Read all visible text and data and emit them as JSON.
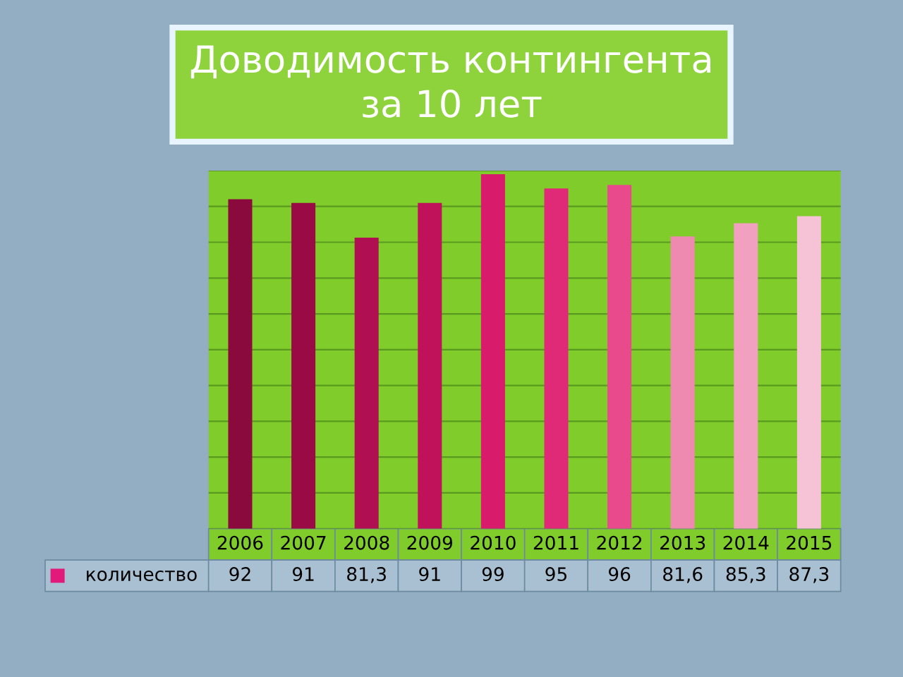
{
  "chart_data": {
    "type": "bar",
    "title": "Доводимость контингента\nза 10 лет",
    "categories": [
      "2006",
      "2007",
      "2008",
      "2009",
      "2010",
      "2011",
      "2012",
      "2013",
      "2014",
      "2015"
    ],
    "series": [
      {
        "name": "количество",
        "color": "#e0197a",
        "colors": [
          "#8b0a3e",
          "#9a0b45",
          "#b00f52",
          "#c0125a",
          "#d81b6a",
          "#e02a78",
          "#e84a8c",
          "#ee8ab0",
          "#f2a0c0",
          "#f6c2d6"
        ],
        "values": [
          92,
          91,
          81.3,
          91,
          99,
          95,
          96,
          81.6,
          85.3,
          87.3
        ],
        "value_labels": [
          "92",
          "91",
          "81,3",
          "91",
          "99",
          "95",
          "96",
          "81,6",
          "85,3",
          "87,3"
        ]
      }
    ],
    "ylim": [
      0,
      100
    ],
    "yticks": [
      {
        "value": 0,
        "label": null
      },
      {
        "value": 10,
        "label": null
      },
      {
        "value": 20,
        "label": null
      },
      {
        "value": 30,
        "label": null
      },
      {
        "value": 40,
        "label": null
      },
      {
        "value": 50,
        "label": null
      },
      {
        "value": 60,
        "label": null
      },
      {
        "value": 70,
        "label": null
      },
      {
        "value": 80,
        "label": null
      },
      {
        "value": 90,
        "label": null
      },
      {
        "value": 100,
        "label": null
      }
    ],
    "grid": "y",
    "legend": "bottom"
  }
}
